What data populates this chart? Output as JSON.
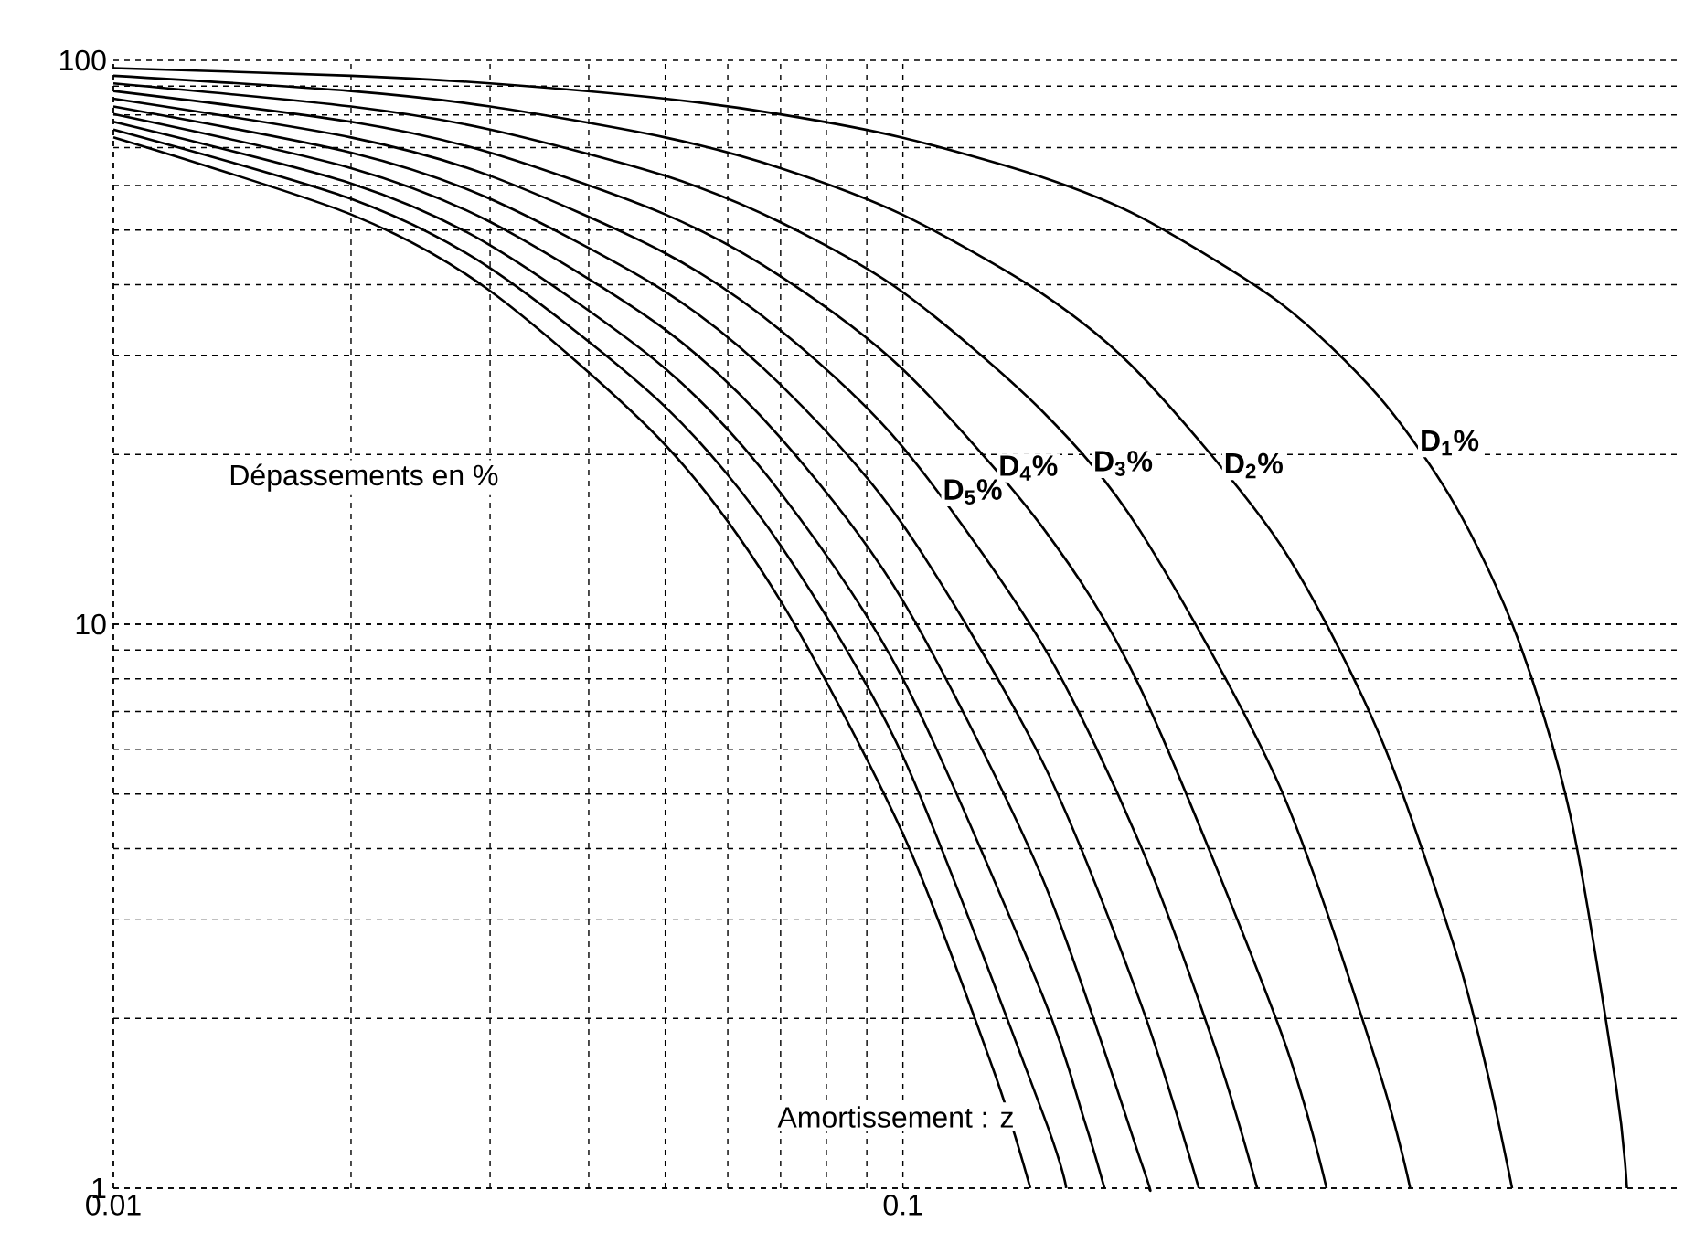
{
  "chart_data": {
    "type": "line",
    "xlabel": "Amortissement : z",
    "ylabel": "Dépassements en %",
    "log": "xy",
    "grid": true,
    "color": "#000000",
    "xlim": [
      0.01,
      0.96
    ],
    "ylim": [
      1,
      100
    ],
    "xticks": [
      0.01,
      0.1
    ],
    "yticks": [
      1,
      10,
      100
    ],
    "series": [
      {
        "name": "**D$_{1}$%**",
        "x": [
          0.01,
          0.02,
          0.03,
          0.05,
          0.07,
          0.1,
          0.15,
          0.2,
          0.3,
          0.4,
          0.5,
          0.6,
          0.7,
          0.8,
          0.826
        ],
        "values": [
          96.9,
          93.9,
          91.0,
          85.5,
          80.2,
          72.9,
          62.1,
          52.7,
          37.2,
          25.4,
          16.3,
          9.48,
          4.6,
          1.52,
          1
        ]
      },
      {
        "name": "**D$_{2}$%**",
        "x": [
          0.01,
          0.02,
          0.03,
          0.05,
          0.07,
          0.1,
          0.15,
          0.2,
          0.3,
          0.4,
          0.5,
          0.55,
          0.591
        ],
        "values": [
          93.9,
          88.2,
          82.8,
          73.0,
          64.4,
          53.2,
          38.6,
          27.7,
          13.9,
          6.44,
          2.66,
          1.6,
          1
        ]
      },
      {
        "name": "**D$_{3}$%**",
        "x": [
          0.01,
          0.02,
          0.03,
          0.05,
          0.07,
          0.1,
          0.15,
          0.2,
          0.3,
          0.4,
          0.439
        ],
        "values": [
          91.0,
          82.8,
          75.4,
          62.4,
          51.6,
          38.8,
          23.9,
          14.6,
          5.16,
          1.63,
          1
        ]
      },
      {
        "name": "**D$_{4}$%**",
        "x": [
          0.01,
          0.02,
          0.03,
          0.05,
          0.07,
          0.1,
          0.15,
          0.2,
          0.3,
          0.344
        ],
        "values": [
          88.2,
          77.8,
          68.6,
          53.3,
          41.4,
          28.3,
          14.9,
          7.69,
          1.92,
          1
        ]
      },
      {
        "name": "**D$_{5}$%**",
        "x": [
          0.01,
          0.02,
          0.03,
          0.05,
          0.07,
          0.1,
          0.15,
          0.2,
          0.25,
          0.281
        ],
        "values": [
          85.5,
          73.0,
          62.4,
          45.5,
          33.2,
          20.6,
          9.23,
          4.05,
          1.73,
          1
        ]
      },
      {
        "x": [
          0.01,
          0.02,
          0.03,
          0.05,
          0.07,
          0.1,
          0.15,
          0.2,
          0.237
        ],
        "values": [
          82.8,
          68.6,
          56.8,
          38.9,
          26.6,
          15.0,
          5.73,
          2.13,
          1
        ]
      },
      {
        "x": [
          0.01,
          0.02,
          0.03,
          0.05,
          0.07,
          0.1,
          0.15,
          0.2,
          0.205
        ],
        "values": [
          80.3,
          64.4,
          51.7,
          33.3,
          21.4,
          11.0,
          3.56,
          1.12,
          1
        ]
      },
      {
        "x": [
          0.01,
          0.02,
          0.03,
          0.05,
          0.07,
          0.1,
          0.15,
          0.17,
          0.18
        ],
        "values": [
          77.8,
          60.5,
          47.0,
          28.4,
          17.1,
          8.0,
          2.21,
          1.31,
          1
        ]
      },
      {
        "x": [
          0.01,
          0.02,
          0.03,
          0.05,
          0.07,
          0.1,
          0.15,
          0.161
        ],
        "values": [
          75.4,
          56.8,
          42.8,
          24.3,
          13.8,
          5.83,
          1.37,
          1
        ]
      },
      {
        "x": [
          0.01,
          0.02,
          0.03,
          0.05,
          0.07,
          0.1,
          0.13,
          0.145
        ],
        "values": [
          73.0,
          53.3,
          39.0,
          20.8,
          11.0,
          4.25,
          1.63,
          1
        ]
      }
    ]
  }
}
